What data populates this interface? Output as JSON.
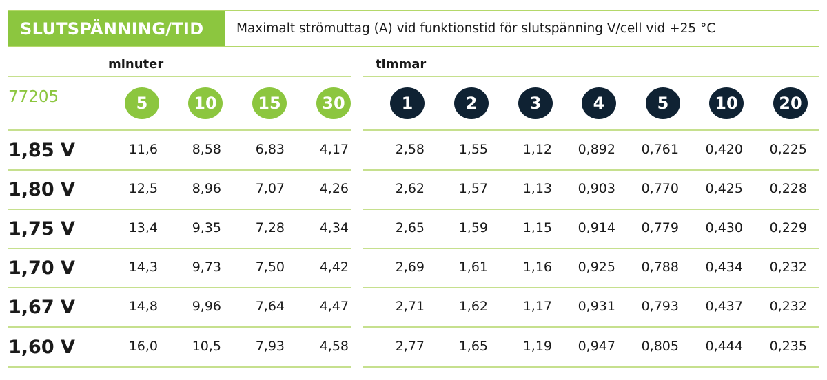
{
  "header": {
    "title": "SLUTSPÄNNING/TID",
    "subtitle": "Maximalt strömuttag (A) vid funktionstid för slutspänning V/cell vid +25 °C"
  },
  "groups": {
    "minutes_label": "minuter",
    "hours_label": "timmar"
  },
  "part_number": "77205",
  "colors": {
    "accent_green": "#8cc63f",
    "dark_navy": "#0f2233",
    "line_green": "#c6e08e"
  },
  "columns": {
    "minutes": [
      "5",
      "10",
      "15",
      "30"
    ],
    "hours": [
      "1",
      "2",
      "3",
      "4",
      "5",
      "10",
      "20"
    ]
  },
  "rows": [
    {
      "label": "1,85 V",
      "values": [
        "11,6",
        "8,58",
        "6,83",
        "4,17",
        "2,58",
        "1,55",
        "1,12",
        "0,892",
        "0,761",
        "0,420",
        "0,225"
      ]
    },
    {
      "label": "1,80 V",
      "values": [
        "12,5",
        "8,96",
        "7,07",
        "4,26",
        "2,62",
        "1,57",
        "1,13",
        "0,903",
        "0,770",
        "0,425",
        "0,228"
      ]
    },
    {
      "label": "1,75 V",
      "values": [
        "13,4",
        "9,35",
        "7,28",
        "4,34",
        "2,65",
        "1,59",
        "1,15",
        "0,914",
        "0,779",
        "0,430",
        "0,229"
      ]
    },
    {
      "label": "1,70 V",
      "values": [
        "14,3",
        "9,73",
        "7,50",
        "4,42",
        "2,69",
        "1,61",
        "1,16",
        "0,925",
        "0,788",
        "0,434",
        "0,232"
      ]
    },
    {
      "label": "1,67 V",
      "values": [
        "14,8",
        "9,96",
        "7,64",
        "4,47",
        "2,71",
        "1,62",
        "1,17",
        "0,931",
        "0,793",
        "0,437",
        "0,232"
      ]
    },
    {
      "label": "1,60 V",
      "values": [
        "16,0",
        "10,5",
        "7,93",
        "4,58",
        "2,77",
        "1,65",
        "1,19",
        "0,947",
        "0,805",
        "0,444",
        "0,235"
      ]
    }
  ]
}
